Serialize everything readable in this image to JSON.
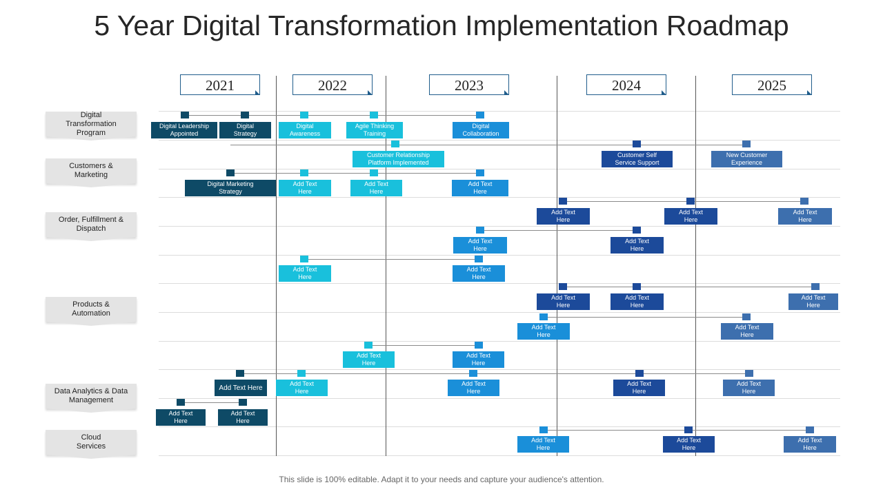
{
  "title": "5 Year Digital Transformation Implementation Roadmap",
  "footer": "This slide is 100% editable. Adapt it to your needs and capture your audience's attention.",
  "colors": {
    "navy": "#0e4a66",
    "cyan": "#19c0dc",
    "blue": "#1a8fd9",
    "royal": "#1c4a9a",
    "steel": "#3d6fae"
  },
  "years": [
    "2021",
    "2022",
    "2023",
    "2024",
    "2025"
  ],
  "categories": [
    "Digital\nTransformation\nProgram",
    "Customers &\nMarketing",
    "Order, Fulfillment  &\nDispatch",
    "Products &\nAutomation",
    "Data Analytics & Data\nManagement",
    "Cloud\nServices"
  ],
  "items": [
    "Digital Leadership\nAppointed",
    "Digital\nStrategy",
    "Digital\nAwareness",
    "Agile Thinking\nTraining",
    "Digital\nCollaboration",
    "Customer Relationship\nPlatform Implemented",
    "Customer Self\nService Support",
    "New Customer\nExperience",
    "Digital Marketing\nStrategy",
    "Add Text\nHere",
    "Add Text\nHere",
    "Add Text\nHere",
    "Add Text\nHere",
    "Add Text\nHere",
    "Add Text\nHere",
    "Add Text\nHere",
    "Add Text\nHere",
    "Add Text\nHere",
    "Add Text\nHere",
    "Add Text\nHere",
    "Add Text\nHere",
    "Add Text\nHere",
    "Add Text\nHere",
    "Add Text\nHere",
    "Add Text\nHere",
    "Add Text\nHere",
    "Add Text Here",
    "Add Text\nHere",
    "Add Text\nHere",
    "Add Text\nHere",
    "Add Text\nHere",
    "Add Text\nHere",
    "Add Text\nHere",
    "Add Text\nHere",
    "Add Text\nHere",
    "Add Text\nHere"
  ]
}
